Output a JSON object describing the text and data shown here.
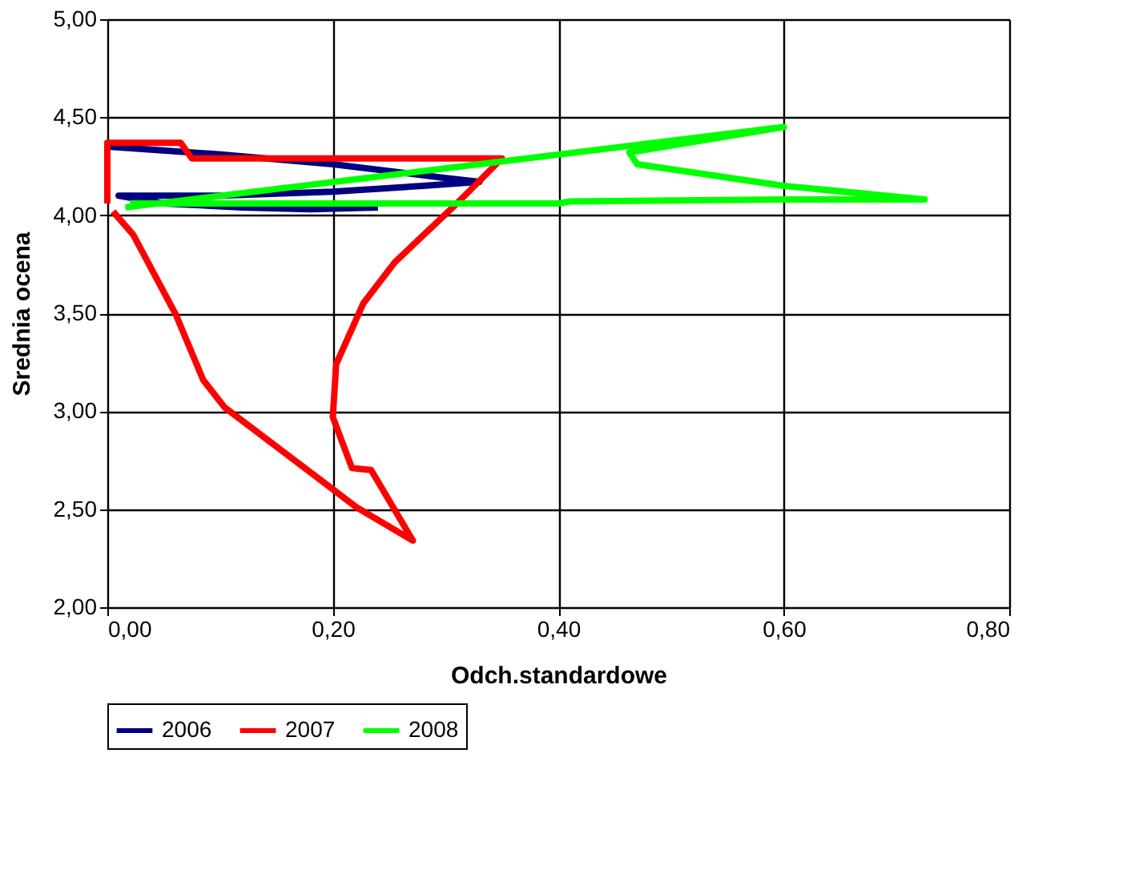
{
  "chart_data": {
    "type": "line",
    "xlabel": "Odch.standardowe",
    "ylabel": "Srednia ocena",
    "xlim": [
      0,
      0.8
    ],
    "ylim": [
      2,
      5
    ],
    "xticks": [
      {
        "value": 0,
        "label": "0,00"
      },
      {
        "value": 0.2,
        "label": "0,20"
      },
      {
        "value": 0.4,
        "label": "0,40"
      },
      {
        "value": 0.6,
        "label": "0,60"
      },
      {
        "value": 0.8,
        "label": "0,80"
      }
    ],
    "yticks": [
      {
        "value": 2,
        "label": "2,00"
      },
      {
        "value": 2.5,
        "label": "2,50"
      },
      {
        "value": 3,
        "label": "3,00"
      },
      {
        "value": 3.5,
        "label": "3,50"
      },
      {
        "value": 4,
        "label": "4,00"
      },
      {
        "value": 4.5,
        "label": "4,50"
      },
      {
        "value": 5,
        "label": "5,00"
      }
    ],
    "grid": true,
    "legend": "bottom",
    "marker": "none",
    "line_style": "solid",
    "series": [
      {
        "name": "2006",
        "color": "#000080",
        "x": [
          0.0,
          0.1,
          0.2,
          0.3,
          0.33,
          0.28,
          0.2,
          0.1,
          0.01,
          0.05,
          0.12,
          0.18,
          0.24
        ],
        "values": [
          4.35,
          4.31,
          4.26,
          4.19,
          4.17,
          4.15,
          4.12,
          4.1,
          4.1,
          4.06,
          4.04,
          4.03,
          4.04
        ]
      },
      {
        "name": "2007",
        "color": "#ff0000",
        "x": [
          0.0,
          0.0,
          0.065,
          0.075,
          0.35,
          0.31,
          0.255,
          0.227,
          0.203,
          0.2,
          0.217,
          0.234,
          0.271,
          0.221,
          0.189,
          0.104,
          0.085,
          0.061,
          0.023,
          0.005
        ],
        "values": [
          4.06,
          4.37,
          4.37,
          4.29,
          4.29,
          4.06,
          3.76,
          3.55,
          3.24,
          2.97,
          2.71,
          2.7,
          2.34,
          2.51,
          2.65,
          3.02,
          3.16,
          3.49,
          3.9,
          4.02
        ]
      },
      {
        "name": "2008",
        "color": "#00ff00",
        "x": [
          0.016,
          0.6,
          0.463,
          0.47,
          0.6,
          0.725,
          0.6,
          0.41,
          0.4,
          0.02
        ],
        "values": [
          4.04,
          4.45,
          4.32,
          4.26,
          4.15,
          4.08,
          4.08,
          4.07,
          4.06,
          4.06
        ]
      }
    ]
  }
}
